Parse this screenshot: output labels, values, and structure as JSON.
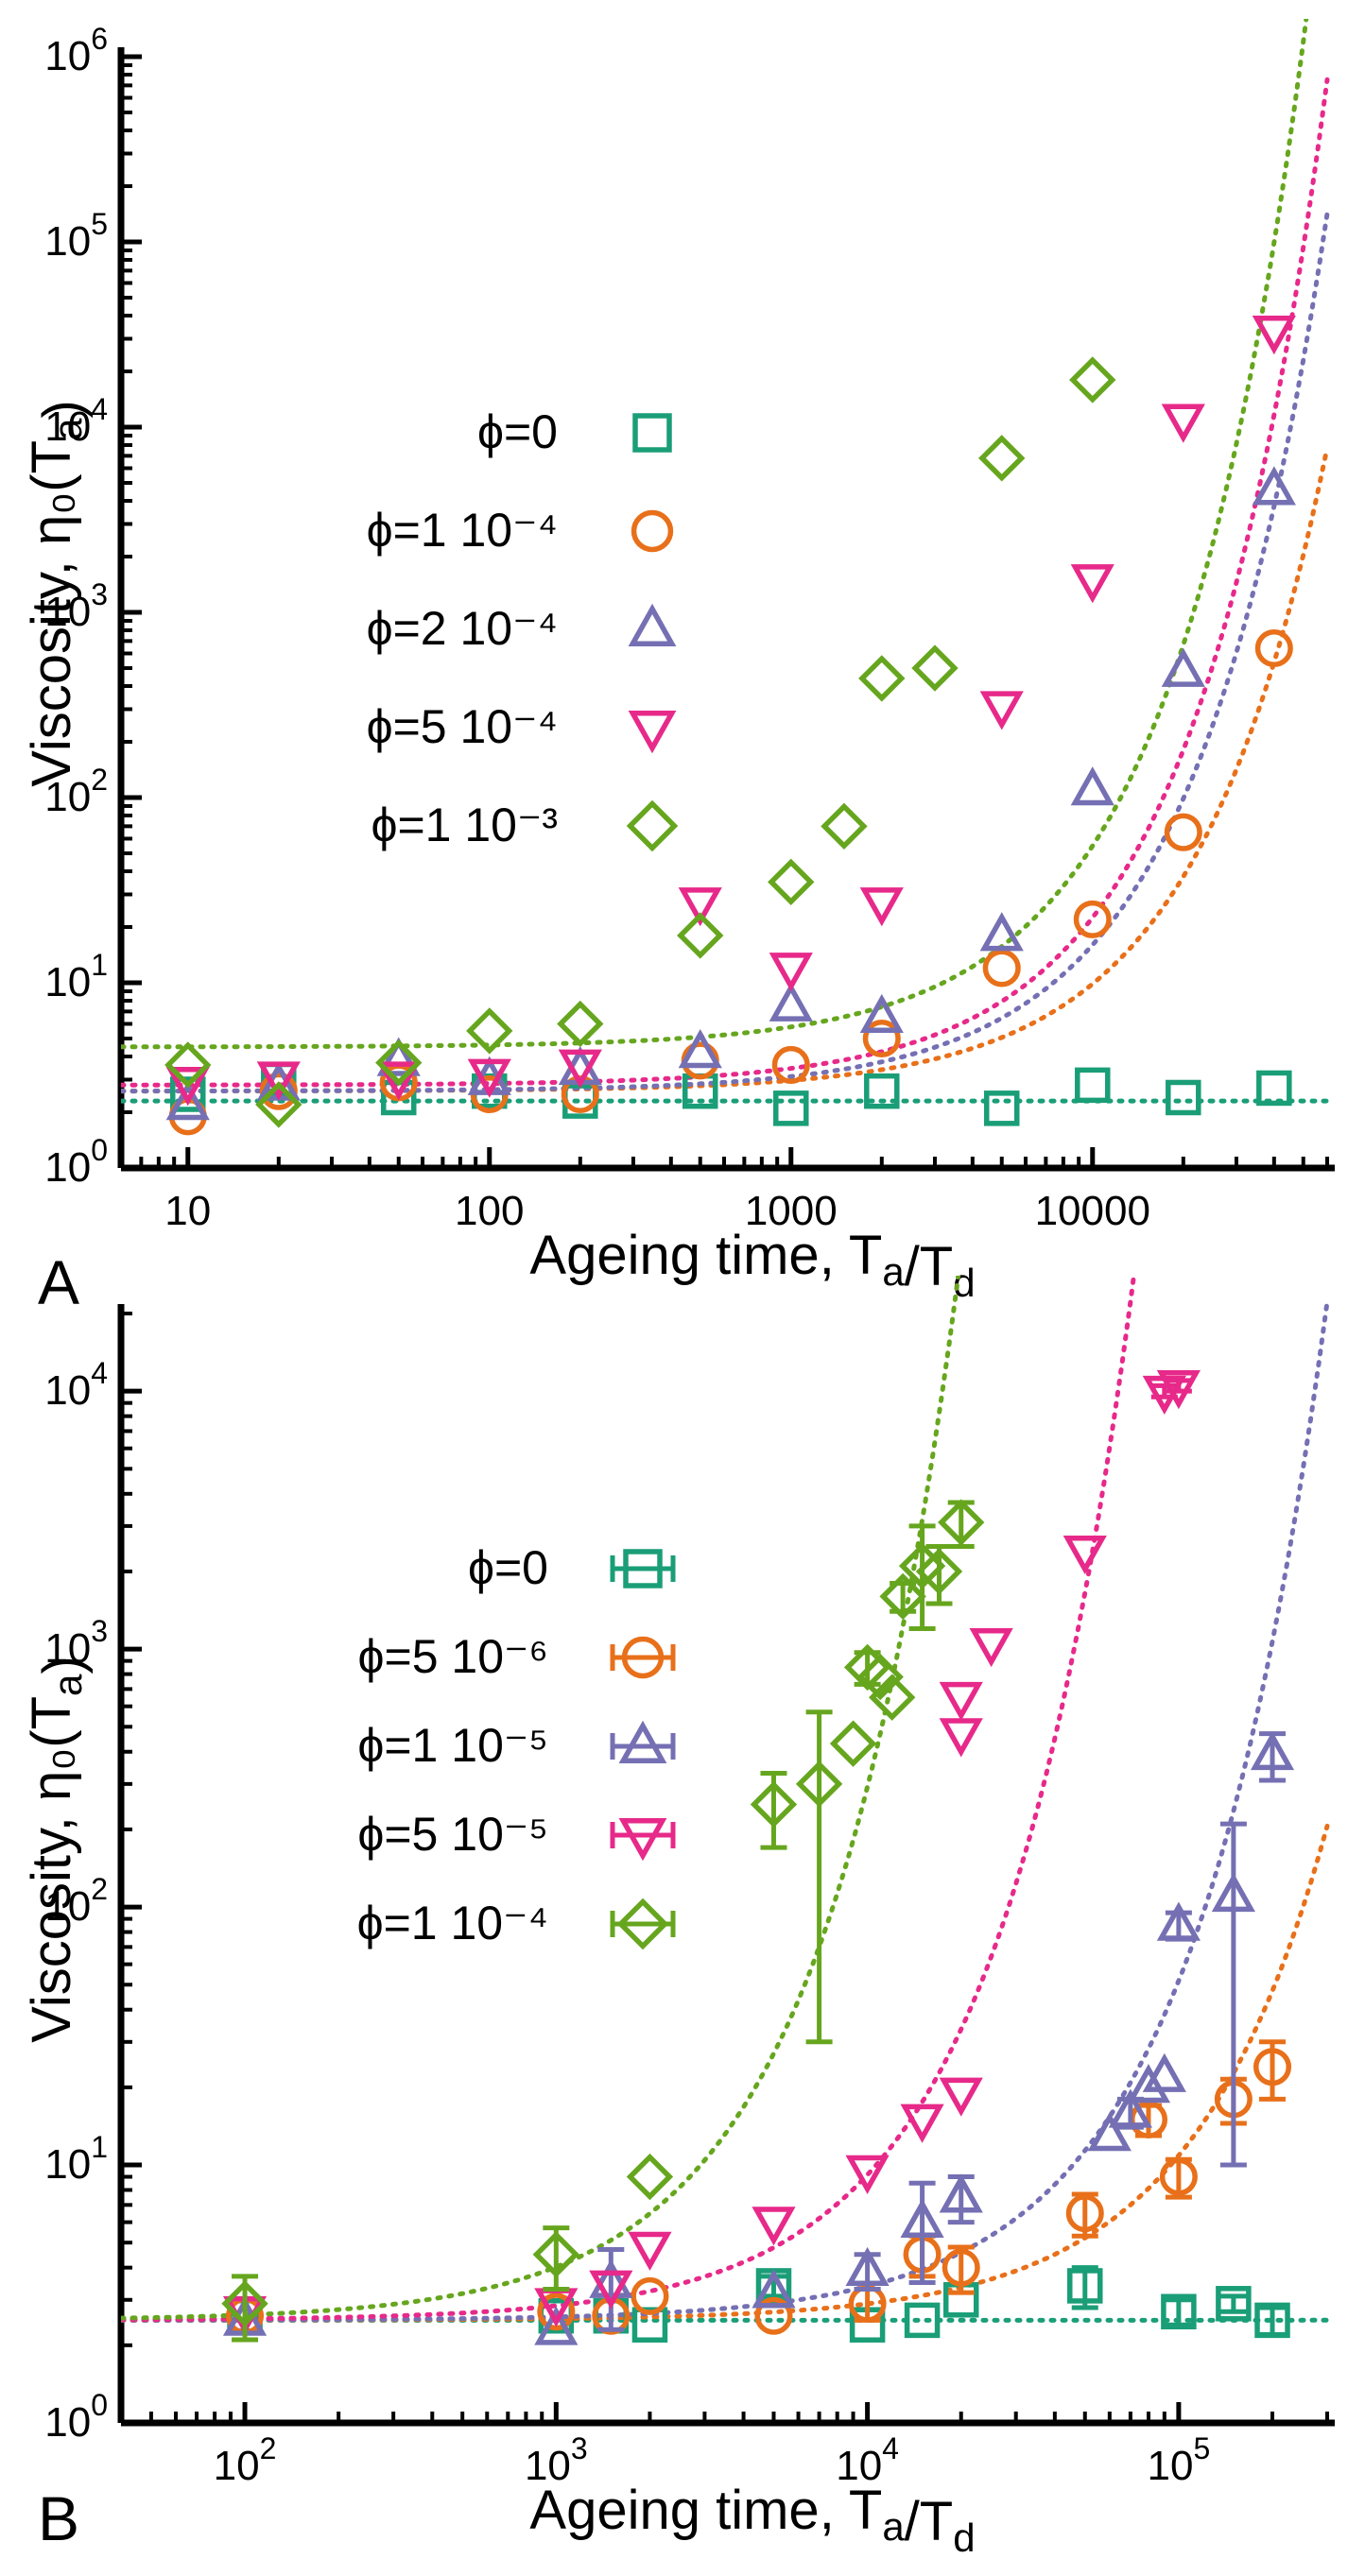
{
  "chart_data": [
    {
      "panel": "A",
      "type": "scatter",
      "xlabel": "Ageing time, T_a/T_d",
      "ylabel": "Viscosity, η₀(T_a)",
      "xscale": "log",
      "yscale": "log",
      "xlim": [
        6,
        60000
      ],
      "ylim": [
        1,
        1000000
      ],
      "xtick_labels": [
        "10",
        "100",
        "1000",
        "10000"
      ],
      "ytick_labels": [
        "10^0",
        "10^1",
        "10^2",
        "10^3",
        "10^4",
        "10^5",
        "10^6"
      ],
      "legend_position": "left-middle",
      "error_bars": false,
      "series": [
        {
          "name": "ϕ=0",
          "color": "#1a9e77",
          "marker": "square",
          "x": [
            10,
            20,
            50,
            100,
            200,
            500,
            1000,
            2000,
            5000,
            10000,
            20000,
            40000
          ],
          "y": [
            2.5,
            3.0,
            2.4,
            2.6,
            2.3,
            2.6,
            2.1,
            2.6,
            2.1,
            2.8,
            2.4,
            2.7
          ],
          "fit": {
            "base": 2.3,
            "tau": 1000000000
          }
        },
        {
          "name": "ϕ=1 10⁻⁴",
          "color": "#e8701a",
          "marker": "circle",
          "x": [
            10,
            20,
            50,
            100,
            200,
            500,
            1000,
            2000,
            5000,
            10000,
            20000,
            40000
          ],
          "y": [
            1.9,
            2.6,
            2.9,
            2.5,
            2.5,
            3.8,
            3.6,
            5.0,
            12,
            22,
            65,
            640
          ],
          "fit": {
            "base": 2.6,
            "tau": 7500
          }
        },
        {
          "name": "ϕ=2 10⁻⁴",
          "color": "#7570b3",
          "marker": "triangle-up",
          "x": [
            10,
            20,
            50,
            100,
            200,
            500,
            1000,
            2000,
            5000,
            10000,
            20000,
            40000
          ],
          "y": [
            2.2,
            2.8,
            3.8,
            3.0,
            3.4,
            4.2,
            7.5,
            6.5,
            18,
            110,
            480,
            4600
          ],
          "fit": {
            "base": 2.6,
            "tau": 5500
          }
        },
        {
          "name": "ϕ=5 10⁻⁴",
          "color": "#e7298a",
          "marker": "triangle-down",
          "x": [
            10,
            20,
            50,
            100,
            200,
            500,
            1000,
            2000,
            5000,
            10000,
            20000,
            40000
          ],
          "y": [
            2.9,
            3.1,
            3.1,
            3.2,
            3.6,
            27,
            12,
            27,
            310,
            1500,
            11000,
            33000
          ],
          "fit": {
            "base": 2.8,
            "tau": 4800
          }
        },
        {
          "name": "ϕ=1 10⁻³",
          "color": "#66a61e",
          "marker": "diamond",
          "x": [
            10,
            20,
            50,
            100,
            200,
            500,
            1000,
            1500,
            2000,
            3000,
            5000,
            10000
          ],
          "y": [
            3.6,
            2.2,
            3.7,
            5.5,
            6.0,
            18,
            35,
            70,
            440,
            500,
            6800,
            18000
          ],
          "fit": {
            "base": 4.5,
            "tau": 4000
          }
        }
      ]
    },
    {
      "panel": "B",
      "type": "scatter",
      "xlabel": "Ageing time, T_a/T_d",
      "ylabel": "Viscosity, η₀(T_a)",
      "xscale": "log",
      "yscale": "log",
      "xlim": [
        40,
        300000
      ],
      "ylim": [
        1,
        20000
      ],
      "xtick_labels": [
        "10^2",
        "10^3",
        "10^4",
        "10^5"
      ],
      "ytick_labels": [
        "10^0",
        "10^1",
        "10^2",
        "10^3",
        "10^4"
      ],
      "legend_position": "left-middle",
      "error_bars": true,
      "series": [
        {
          "name": "ϕ=0",
          "color": "#1a9e77",
          "marker": "square",
          "x": [
            100,
            1000,
            1500,
            2000,
            5000,
            10000,
            15000,
            20000,
            50000,
            100000,
            150000,
            200000
          ],
          "y": [
            2.6,
            2.6,
            2.6,
            2.4,
            3.4,
            2.4,
            2.5,
            3.0,
            3.4,
            2.7,
            2.9,
            2.5
          ],
          "err": [
            0,
            0,
            0,
            0,
            0.3,
            0,
            0,
            0,
            0.6,
            0.3,
            0.2,
            0.3
          ],
          "fit": {
            "base": 2.5,
            "tau": 1000000000
          }
        },
        {
          "name": "ϕ=5 10⁻⁶",
          "color": "#e8701a",
          "marker": "circle",
          "x": [
            100,
            1000,
            1500,
            2000,
            5000,
            10000,
            15000,
            20000,
            50000,
            80000,
            100000,
            150000,
            200000
          ],
          "y": [
            2.6,
            2.7,
            2.6,
            3.1,
            2.6,
            2.9,
            4.5,
            4.0,
            6.5,
            15,
            9.0,
            18,
            24
          ],
          "err": [
            0,
            0,
            0,
            0,
            0,
            0.4,
            0.8,
            0.8,
            1.2,
            2.0,
            1.5,
            3.5,
            6.0
          ],
          "fit": {
            "base": 2.5,
            "tau": 68000
          }
        },
        {
          "name": "ϕ=1 10⁻⁵",
          "color": "#7570b3",
          "marker": "triangle-up",
          "x": [
            100,
            1000,
            1500,
            5000,
            10000,
            15000,
            20000,
            60000,
            70000,
            80000,
            90000,
            100000,
            150000,
            200000
          ],
          "y": [
            2.5,
            2.3,
            3.5,
            3.2,
            3.9,
            6.0,
            7.5,
            13,
            16,
            20,
            22,
            85,
            110,
            390
          ],
          "err": [
            0,
            0,
            1.2,
            0,
            0.6,
            2.5,
            1.5,
            0,
            2.0,
            0,
            0,
            10,
            100,
            80
          ],
          "fit": {
            "base": 2.5,
            "tau": 33000
          }
        },
        {
          "name": "ϕ=5 10⁻⁵",
          "color": "#e7298a",
          "marker": "triangle-down",
          "x": [
            100,
            1000,
            1500,
            2000,
            5000,
            10000,
            15000,
            20000,
            20000,
            20000,
            25000,
            50000,
            90000,
            100000
          ],
          "y": [
            2.7,
            2.9,
            3.4,
            4.8,
            6.0,
            9.5,
            15,
            19,
            650,
            470,
            1050,
            2400,
            10000,
            10500
          ],
          "err": [
            0,
            0,
            0,
            0,
            0,
            0,
            0,
            0,
            0,
            0,
            0,
            0,
            500,
            500
          ],
          "fit": {
            "base": 2.5,
            "tau": 7700
          }
        },
        {
          "name": "ϕ=1 10⁻⁴",
          "color": "#66a61e",
          "marker": "diamond",
          "x": [
            100,
            1000,
            2000,
            5000,
            7000,
            9000,
            10000,
            11000,
            12000,
            13000,
            15000,
            17000,
            20000
          ],
          "y": [
            2.9,
            4.5,
            9.0,
            250,
            300,
            430,
            850,
            780,
            650,
            1600,
            2100,
            2000,
            3100
          ],
          "err": [
            0.8,
            1.2,
            0,
            80,
            270,
            0,
            120,
            0,
            0,
            200,
            900,
            500,
            600
          ],
          "fit": {
            "base": 2.5,
            "tau": 2100
          }
        }
      ]
    }
  ],
  "panel_labels": [
    "A",
    "B"
  ]
}
